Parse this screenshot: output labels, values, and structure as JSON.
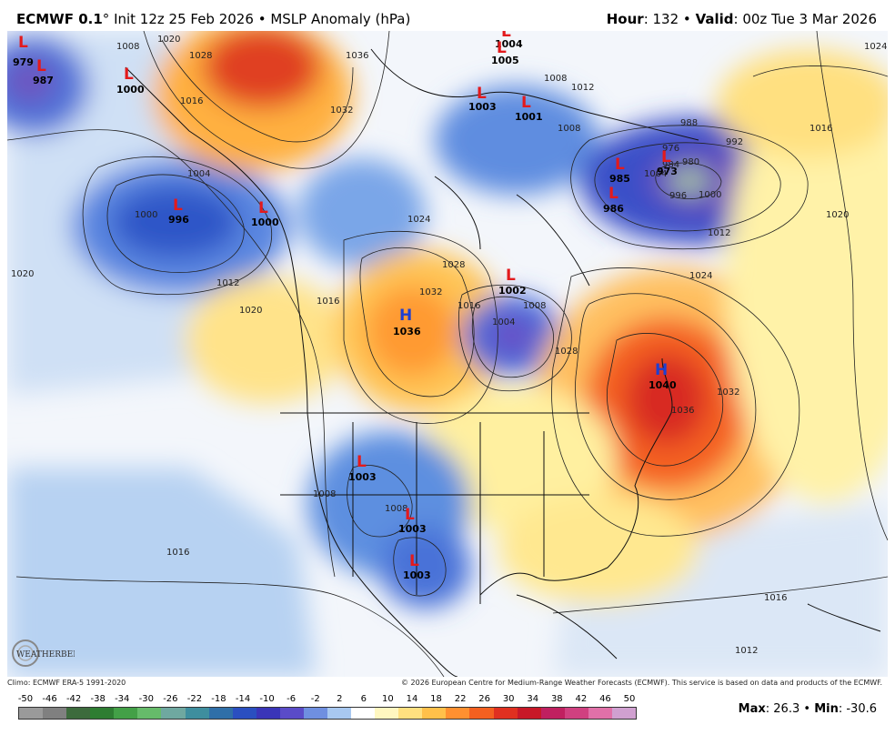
{
  "header": {
    "model": "ECMWF 0.1",
    "degree": "°",
    "init": "Init 12z 25 Feb 2026",
    "sep": "•",
    "product": "MSLP Anomaly (hPa)",
    "hour_label": "Hour",
    "hour_value": ": 132",
    "valid_label": "Valid",
    "valid_value": ": 00z Tue 3 Mar 2026"
  },
  "pressure_centers": [
    {
      "type": "L",
      "value": "979"
    },
    {
      "type": "L",
      "value": "987"
    },
    {
      "type": "L",
      "value": "1000"
    },
    {
      "type": "L",
      "value": "996"
    },
    {
      "type": "L",
      "value": "1000"
    },
    {
      "type": "L",
      "value": "1004"
    },
    {
      "type": "L",
      "value": "1005"
    },
    {
      "type": "L",
      "value": "1003"
    },
    {
      "type": "L",
      "value": "1001"
    },
    {
      "type": "L",
      "value": "985"
    },
    {
      "type": "L",
      "value": "973"
    },
    {
      "type": "L",
      "value": "986"
    },
    {
      "type": "L",
      "value": "1002"
    },
    {
      "type": "H",
      "value": "1036"
    },
    {
      "type": "H",
      "value": "1040"
    },
    {
      "type": "L",
      "value": "1003"
    },
    {
      "type": "L",
      "value": "1003"
    },
    {
      "type": "L",
      "value": "1003"
    }
  ],
  "contour_labels": [
    "1008",
    "1020",
    "1028",
    "1016",
    "1036",
    "1032",
    "1004",
    "1000",
    "1024",
    "1028",
    "1032",
    "1004",
    "1008",
    "1016",
    "1012",
    "1020",
    "1016",
    "1020",
    "1008",
    "1012",
    "1008",
    "988",
    "992",
    "976",
    "980",
    "984",
    "996",
    "1000",
    "1004",
    "1012",
    "1016",
    "1020",
    "1024",
    "1028",
    "1032",
    "1036",
    "1024",
    "1016",
    "1012",
    "1016",
    "1008",
    "1008"
  ],
  "footer": {
    "climo": "Climo: ECMWF ERA-5 1991-2020",
    "copyright": "© 2026 European Centre for Medium-Range Weather Forecasts (ECMWF). This service is based on data and products of the ECMWF."
  },
  "colorbar": {
    "ticks": [
      "-50",
      "-46",
      "-42",
      "-38",
      "-34",
      "-30",
      "-26",
      "-22",
      "-18",
      "-14",
      "-10",
      "-6",
      "-2",
      "2",
      "6",
      "10",
      "14",
      "18",
      "22",
      "26",
      "30",
      "34",
      "38",
      "42",
      "46",
      "50"
    ],
    "colors": [
      "#9a9a9a",
      "#808080",
      "#3d6b3d",
      "#2e7d32",
      "#43a047",
      "#66bb6a",
      "#6fa8a0",
      "#3e8e9e",
      "#2f6fa8",
      "#2a4fc0",
      "#3a35b8",
      "#5a4bc8",
      "#6f8fe0",
      "#a8c8f0",
      "#ffffff",
      "#fff7c0",
      "#ffe080",
      "#ffc04a",
      "#ff9030",
      "#f46020",
      "#e03020",
      "#c81828",
      "#c02060",
      "#d04080",
      "#e070a8",
      "#d0a0d0"
    ]
  },
  "stats": {
    "max_label": "Max",
    "max_value": ": 26.3",
    "min_label": "Min",
    "min_value": ": -30.6",
    "sep": "•"
  },
  "watermark": {
    "text": "WEATHERBELL"
  }
}
